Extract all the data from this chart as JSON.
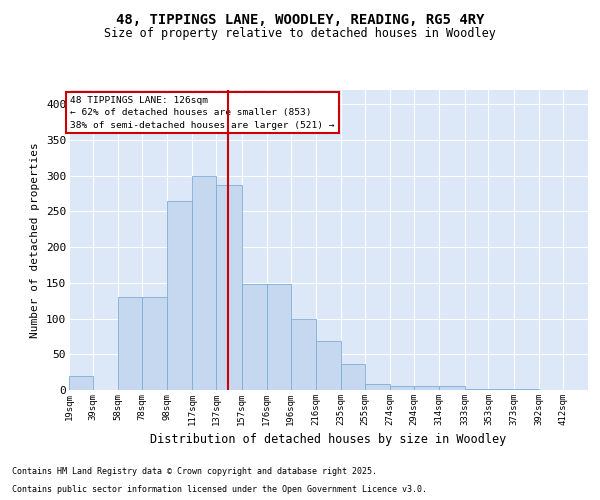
{
  "title_line1": "48, TIPPINGS LANE, WOODLEY, READING, RG5 4RY",
  "title_line2": "Size of property relative to detached houses in Woodley",
  "xlabel": "Distribution of detached houses by size in Woodley",
  "ylabel": "Number of detached properties",
  "tick_labels": [
    "19sqm",
    "39sqm",
    "58sqm",
    "78sqm",
    "98sqm",
    "117sqm",
    "137sqm",
    "157sqm",
    "176sqm",
    "196sqm",
    "216sqm",
    "235sqm",
    "255sqm",
    "274sqm",
    "294sqm",
    "314sqm",
    "333sqm",
    "353sqm",
    "373sqm",
    "392sqm",
    "412sqm"
  ],
  "bin_starts": [
    0,
    19,
    39,
    58,
    78,
    98,
    117,
    137,
    157,
    176,
    196,
    216,
    235,
    255,
    274,
    294,
    314,
    333,
    353,
    373,
    392
  ],
  "bin_ends": [
    19,
    39,
    58,
    78,
    98,
    117,
    137,
    157,
    176,
    196,
    216,
    235,
    255,
    274,
    294,
    314,
    333,
    353,
    373,
    392,
    412
  ],
  "heights": [
    20,
    0,
    130,
    130,
    265,
    300,
    287,
    148,
    148,
    99,
    68,
    36,
    9,
    6,
    5,
    5,
    2,
    1,
    1,
    0,
    0
  ],
  "bar_color": "#c5d8f0",
  "bar_edge_color": "#7eadd4",
  "vline_x": 126,
  "vline_color": "#cc0000",
  "vline_label": "48 TIPPINGS LANE: 126sqm",
  "annotation_line2": "← 62% of detached houses are smaller (853)",
  "annotation_line3": "38% of semi-detached houses are larger (521) →",
  "ylim": [
    0,
    420
  ],
  "yticks": [
    0,
    50,
    100,
    150,
    200,
    250,
    300,
    350,
    400
  ],
  "xlim": [
    0,
    412
  ],
  "background_color": "#dce8f8",
  "grid_color": "#ffffff",
  "footnote1": "Contains HM Land Registry data © Crown copyright and database right 2025.",
  "footnote2": "Contains public sector information licensed under the Open Government Licence v3.0."
}
